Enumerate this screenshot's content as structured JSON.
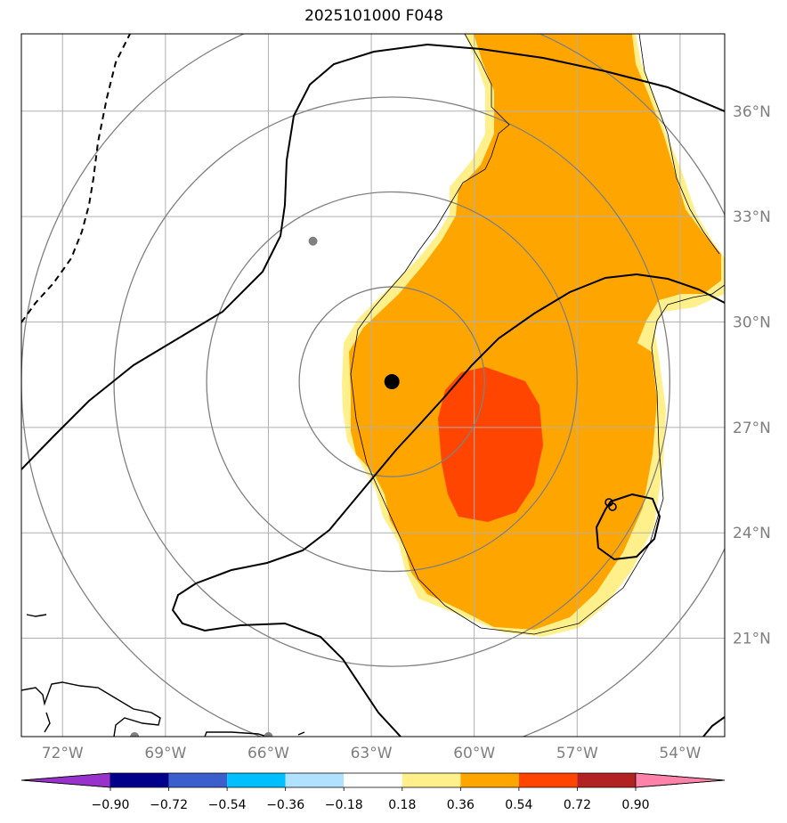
{
  "title": "2025101000 F048",
  "map": {
    "x_range_lon": [
      -73.2,
      -52.7
    ],
    "y_range_lat": [
      18.2,
      38.2
    ],
    "lon_ticks": [
      {
        "value": -72,
        "label": "72°W"
      },
      {
        "value": -69,
        "label": "69°W"
      },
      {
        "value": -66,
        "label": "66°W"
      },
      {
        "value": -63,
        "label": "63°W"
      },
      {
        "value": -60,
        "label": "60°W"
      },
      {
        "value": -57,
        "label": "57°W"
      },
      {
        "value": -54,
        "label": "54°W"
      }
    ],
    "lat_ticks": [
      {
        "value": 36,
        "label": "36°N"
      },
      {
        "value": 33,
        "label": "33°N"
      },
      {
        "value": 30,
        "label": "30°N"
      },
      {
        "value": 27,
        "label": "27°N"
      },
      {
        "value": 24,
        "label": "24°N"
      },
      {
        "value": 21,
        "label": "21°N"
      }
    ],
    "storm_center": {
      "lon": -62.4,
      "lat": 28.3
    },
    "range_rings_deg": [
      2.7,
      5.4,
      8.1,
      10.8
    ],
    "gray_markers": [
      {
        "lon": -64.7,
        "lat": 32.3
      },
      {
        "lon": -69.9,
        "lat": 18.2
      },
      {
        "lon": -66.0,
        "lat": 18.2
      }
    ],
    "colors": {
      "ring": "#808080",
      "grid": "#b0b0b0",
      "shade_light": "#fff08c",
      "shade_orange": "#ffa500",
      "shade_red": "#ff4500",
      "contour": "#000000"
    }
  },
  "colorbar": {
    "colors": [
      "#9932cc",
      "#00008b",
      "#3a5fcd",
      "#00bfff",
      "#b0e2ff",
      "#ffffff",
      "#fff08c",
      "#ffa500",
      "#ff4500",
      "#b22222",
      "#ff82ab"
    ],
    "labels": [
      "−0.90",
      "−0.72",
      "−0.54",
      "−0.36",
      "−0.18",
      "0.18",
      "0.36",
      "0.54",
      "0.72",
      "0.90"
    ]
  }
}
